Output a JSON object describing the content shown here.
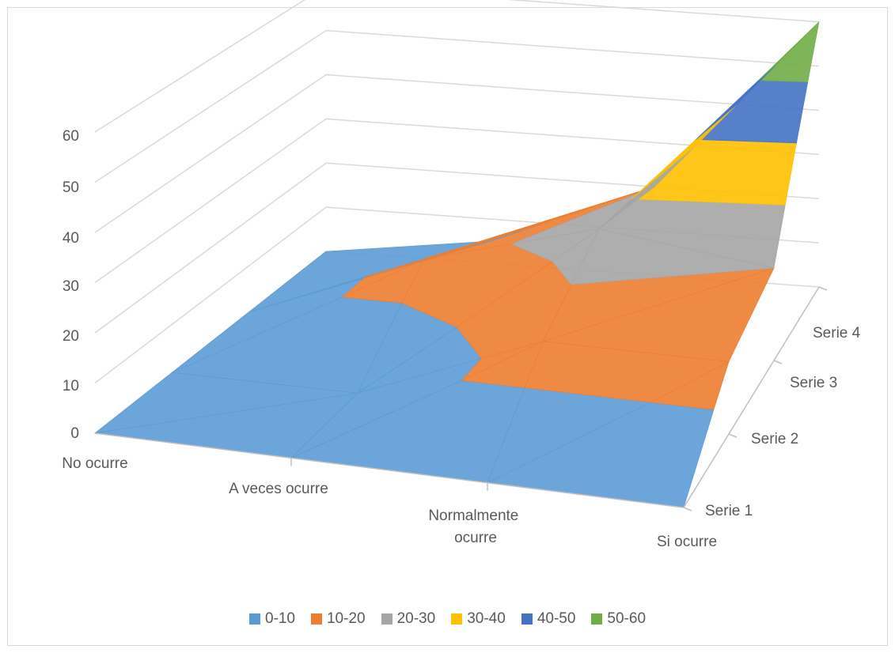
{
  "chart_data": {
    "type": "surface-3d",
    "title": "",
    "categories": [
      "No ocurre",
      "A veces ocurre",
      "Normalmente ocurre",
      "Si ocurre"
    ],
    "series_labels": [
      "Serie 1",
      "Serie 2",
      "Serie 3",
      "Serie 4"
    ],
    "z_ticks": [
      "0",
      "10",
      "20",
      "30",
      "40",
      "50",
      "60"
    ],
    "zlim": [
      0,
      60
    ],
    "grid": true,
    "values": [
      [
        0,
        0,
        0,
        0
      ],
      [
        0,
        0,
        15,
        15
      ],
      [
        0,
        15,
        25,
        20
      ],
      [
        0,
        5,
        20,
        60
      ]
    ],
    "bands": [
      {
        "label": "0-10",
        "color": "#5b9bd5"
      },
      {
        "label": "10-20",
        "color": "#ed7d31"
      },
      {
        "label": "20-30",
        "color": "#a5a5a5"
      },
      {
        "label": "30-40",
        "color": "#ffc000"
      },
      {
        "label": "40-50",
        "color": "#4472c4"
      },
      {
        "label": "50-60",
        "color": "#70ad47"
      }
    ],
    "legend_position": "bottom"
  }
}
